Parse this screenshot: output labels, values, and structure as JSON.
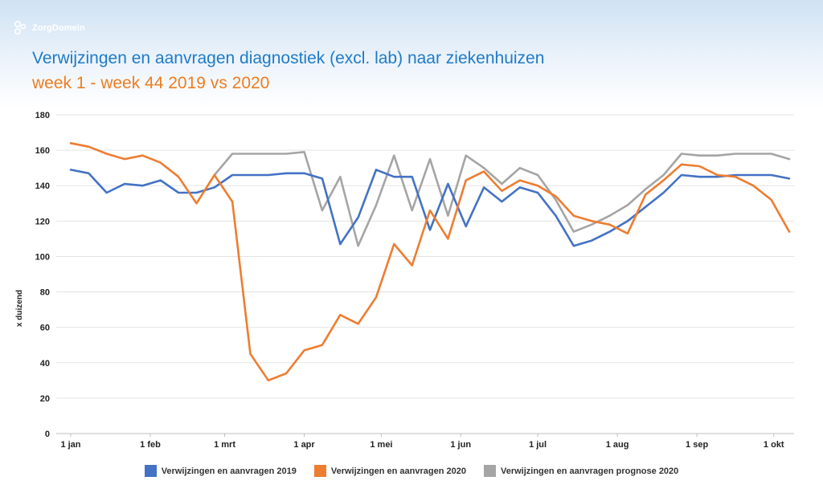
{
  "brand": {
    "name": "ZorgDomein"
  },
  "colors": {
    "s2019": "#4472c4",
    "s2020": "#ed7d31",
    "prognose": "#a5a5a5",
    "title": "#1f7bc8",
    "subtitle": "#ee7d21"
  },
  "chart_data": {
    "type": "line",
    "title": "Verwijzingen en aanvragen diagnostiek (excl. lab) naar ziekenhuizen",
    "subtitle": "week 1 - week 44 2019 vs 2020",
    "ylabel": "x duizend",
    "xlabel": "",
    "ylim": [
      0,
      180
    ],
    "yticks": [
      0,
      20,
      40,
      60,
      80,
      100,
      120,
      140,
      160,
      180
    ],
    "xticks": [
      "1 jan",
      "1 feb",
      "1 mrt",
      "1 apr",
      "1 mei",
      "1 jun",
      "1 jul",
      "1 aug",
      "1 sep",
      "1 okt"
    ],
    "xtick_weeks": [
      1,
      5.43,
      9.57,
      14,
      18.29,
      22.71,
      27,
      31.43,
      35.86,
      40.14
    ],
    "weeks": [
      1,
      2,
      3,
      4,
      5,
      6,
      7,
      8,
      9,
      10,
      11,
      12,
      13,
      14,
      15,
      16,
      17,
      18,
      19,
      20,
      21,
      22,
      23,
      24,
      25,
      26,
      27,
      28,
      29,
      30,
      31,
      32,
      33,
      34,
      35,
      36,
      37,
      38,
      39,
      40,
      41,
      42,
      43,
      44
    ],
    "grid": true,
    "legend_position": "bottom",
    "series": [
      {
        "name": "Verwijzingen en aanvragen 2019",
        "color": "#4472c4",
        "values": [
          149,
          147,
          136,
          141,
          140,
          143,
          136,
          136,
          139,
          146,
          146,
          146,
          147,
          147,
          144,
          107,
          122,
          149,
          145,
          145,
          115,
          141,
          117,
          139,
          131,
          139,
          136,
          123,
          106,
          109,
          114,
          120,
          128,
          136,
          146,
          145,
          145,
          146,
          146,
          146,
          144
        ]
      },
      {
        "name": "Verwijzingen en aanvragen 2020",
        "color": "#ed7d31",
        "values": [
          164,
          162,
          158,
          155,
          157,
          153,
          145,
          130,
          146,
          131,
          45,
          30,
          34,
          47,
          50,
          67,
          62,
          77,
          107,
          95,
          126,
          110,
          143,
          148,
          137,
          143,
          140,
          134,
          123,
          120,
          118,
          113,
          135,
          143,
          152,
          151,
          146,
          145,
          140,
          132,
          114
        ]
      },
      {
        "name": "Verwijzingen en aanvragen prognose 2020",
        "color": "#a5a5a5",
        "start_week": 9,
        "values": [
          146,
          158,
          158,
          158,
          158,
          159,
          126,
          145,
          106,
          129,
          157,
          126,
          155,
          123,
          157,
          150,
          141,
          150,
          146,
          132,
          114,
          118,
          123,
          129,
          138,
          146,
          158,
          157,
          157,
          158,
          158,
          158,
          155
        ]
      }
    ]
  }
}
